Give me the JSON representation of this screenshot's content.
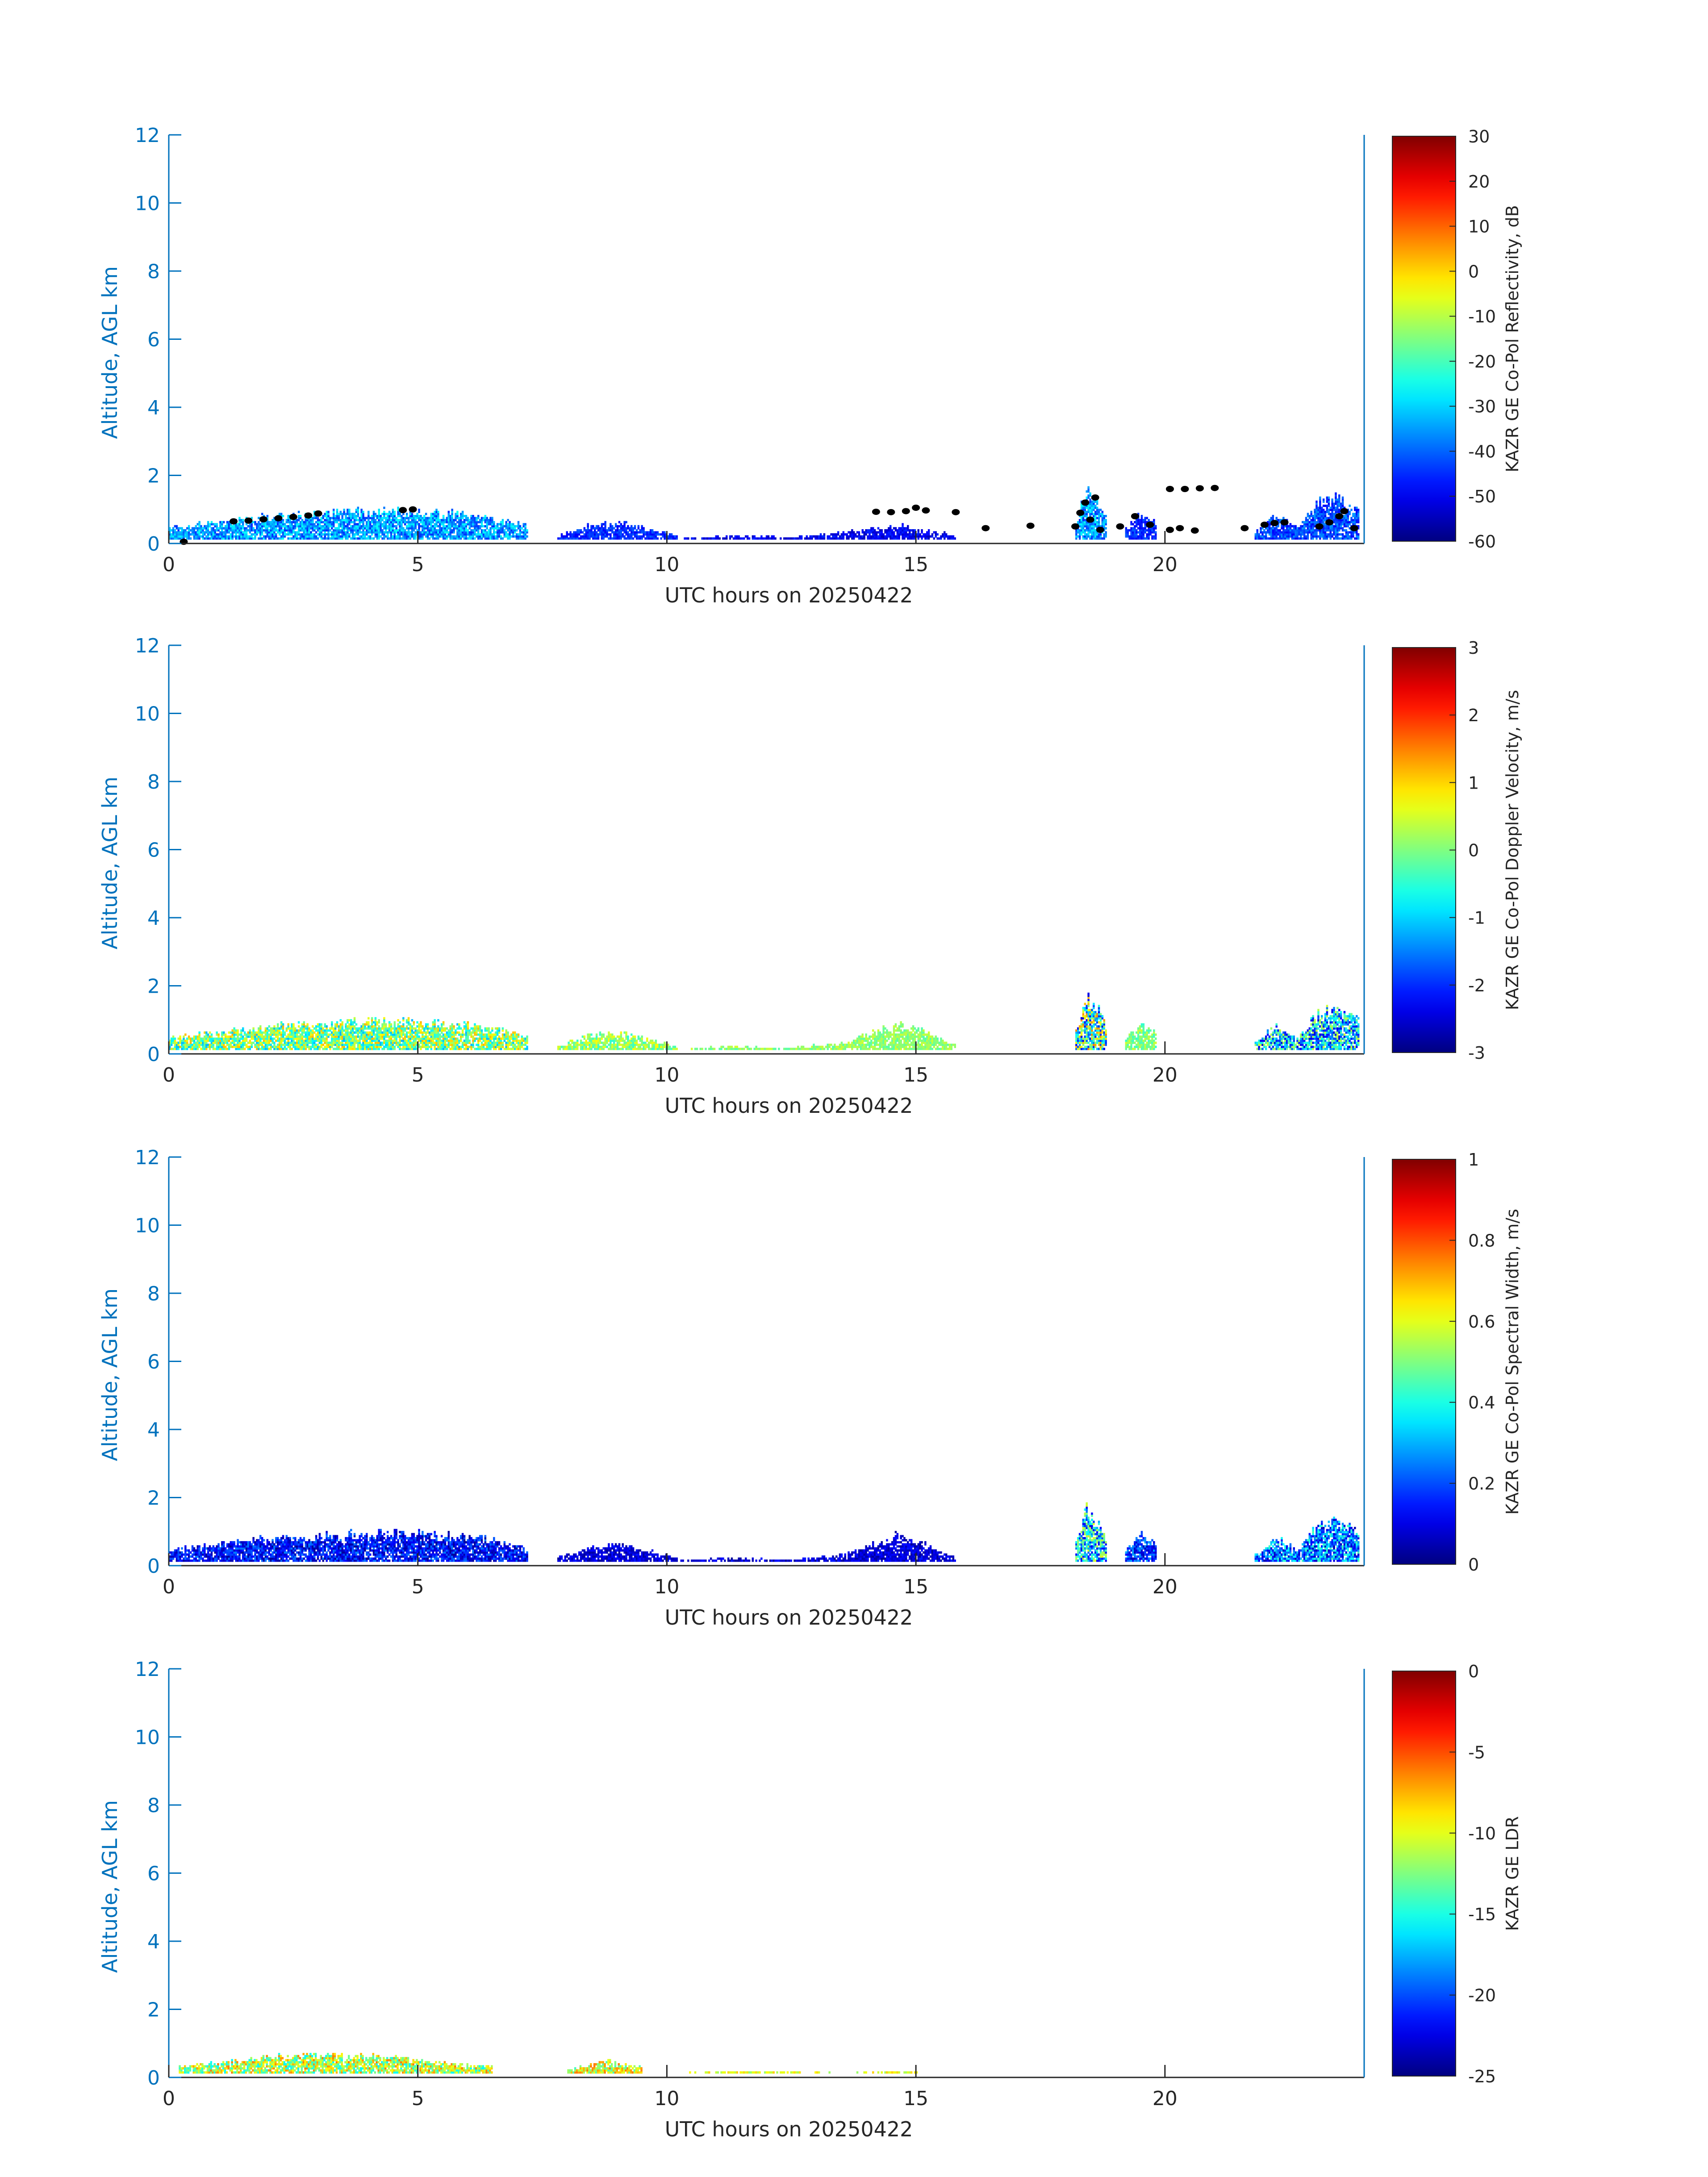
{
  "figure": {
    "colormap": "jet",
    "axis_color": "#0072bd",
    "text_color": "#262626",
    "marker_color": "#000000"
  },
  "chart_data": [
    {
      "type": "heatmap",
      "title": "",
      "xlabel": "UTC hours on 20250422",
      "ylabel": "Altitude, AGL km",
      "xlim": [
        0,
        24
      ],
      "ylim": [
        0,
        12
      ],
      "x_ticks": [
        0,
        5,
        10,
        15,
        20
      ],
      "y_ticks": [
        0,
        2,
        4,
        6,
        8,
        10,
        12
      ],
      "grid": false,
      "colorbar": {
        "label": "KAZR GE Co-Pol Reflectivity, dB",
        "min": -60,
        "max": 30,
        "ticks": [
          -60,
          -50,
          -40,
          -30,
          -20,
          -10,
          0,
          10,
          20,
          30
        ]
      },
      "echo_regions": [
        {
          "x": [
            0,
            7.2
          ],
          "top_km": [
            0.45,
            0.6,
            0.8,
            0.85,
            0.95,
            0.9,
            0.8,
            0.5
          ],
          "value_range": [
            -45,
            -25
          ]
        },
        {
          "x": [
            7.8,
            10.2
          ],
          "top_km": [
            0.2,
            0.5,
            0.6,
            0.4,
            0.2
          ],
          "value_range": [
            -50,
            -40
          ]
        },
        {
          "x": [
            10.2,
            15.8
          ],
          "top_km": [
            0.1,
            0.2,
            0.15,
            0.3,
            0.5,
            0.2
          ],
          "value_range": [
            -55,
            -45
          ]
        },
        {
          "x": [
            18.2,
            18.8
          ],
          "top_km": [
            0.6,
            1.6,
            1.4,
            0.8
          ],
          "value_range": [
            -45,
            -25
          ]
        },
        {
          "x": [
            19.2,
            19.8
          ],
          "top_km": [
            0.4,
            0.9,
            0.6
          ],
          "value_range": [
            -50,
            -40
          ]
        },
        {
          "x": [
            21.8,
            23.9
          ],
          "top_km": [
            0.3,
            0.8,
            0.4,
            1.2,
            1.3,
            0.9
          ],
          "value_range": [
            -50,
            -35
          ]
        }
      ],
      "cloud_base_markers": [
        [
          0.3,
          0.05
        ],
        [
          1.3,
          0.65
        ],
        [
          1.6,
          0.67
        ],
        [
          1.9,
          0.71
        ],
        [
          2.2,
          0.74
        ],
        [
          2.5,
          0.78
        ],
        [
          2.8,
          0.82
        ],
        [
          3.0,
          0.88
        ],
        [
          4.7,
          0.98
        ],
        [
          4.9,
          1.0
        ],
        [
          14.2,
          0.93
        ],
        [
          14.5,
          0.92
        ],
        [
          14.8,
          0.95
        ],
        [
          15.0,
          1.05
        ],
        [
          15.2,
          0.97
        ],
        [
          15.8,
          0.92
        ],
        [
          16.4,
          0.45
        ],
        [
          17.3,
          0.52
        ],
        [
          18.2,
          0.5
        ],
        [
          18.3,
          0.9
        ],
        [
          18.4,
          1.2
        ],
        [
          18.5,
          0.7
        ],
        [
          18.6,
          1.35
        ],
        [
          18.7,
          0.4
        ],
        [
          19.1,
          0.5
        ],
        [
          19.4,
          0.8
        ],
        [
          19.7,
          0.55
        ],
        [
          20.1,
          0.4
        ],
        [
          20.3,
          0.45
        ],
        [
          20.6,
          0.38
        ],
        [
          20.1,
          1.6
        ],
        [
          20.4,
          1.6
        ],
        [
          20.7,
          1.62
        ],
        [
          21.0,
          1.63
        ],
        [
          21.6,
          0.45
        ],
        [
          22.0,
          0.55
        ],
        [
          22.2,
          0.6
        ],
        [
          22.4,
          0.62
        ],
        [
          23.1,
          0.5
        ],
        [
          23.3,
          0.62
        ],
        [
          23.5,
          0.8
        ],
        [
          23.6,
          0.95
        ],
        [
          23.8,
          0.45
        ]
      ]
    },
    {
      "type": "heatmap",
      "title": "",
      "xlabel": "UTC hours on 20250422",
      "ylabel": "Altitude, AGL km",
      "xlim": [
        0,
        24
      ],
      "ylim": [
        0,
        12
      ],
      "x_ticks": [
        0,
        5,
        10,
        15,
        20
      ],
      "y_ticks": [
        0,
        2,
        4,
        6,
        8,
        10,
        12
      ],
      "grid": false,
      "colorbar": {
        "label": "KAZR GE Co-Pol Doppler Velocity, m/s",
        "min": -3,
        "max": 3,
        "ticks": [
          -3,
          -2,
          -1,
          0,
          1,
          2,
          3
        ]
      },
      "echo_regions": [
        {
          "x": [
            0,
            7.2
          ],
          "top_km": [
            0.45,
            0.6,
            0.8,
            0.85,
            0.95,
            0.9,
            0.8,
            0.5
          ],
          "value_range": [
            -1.2,
            1.2
          ]
        },
        {
          "x": [
            7.8,
            10.2
          ],
          "top_km": [
            0.2,
            0.5,
            0.6,
            0.4,
            0.2
          ],
          "value_range": [
            -0.5,
            0.8
          ]
        },
        {
          "x": [
            10.2,
            15.8
          ],
          "top_km": [
            0.1,
            0.2,
            0.15,
            0.3,
            0.9,
            0.2
          ],
          "value_range": [
            -0.3,
            0.5
          ]
        },
        {
          "x": [
            18.2,
            18.8
          ],
          "top_km": [
            0.6,
            1.6,
            1.4,
            0.8
          ],
          "value_range": [
            -2.5,
            1.5
          ]
        },
        {
          "x": [
            19.2,
            19.8
          ],
          "top_km": [
            0.4,
            0.9,
            0.6
          ],
          "value_range": [
            -0.5,
            0.5
          ]
        },
        {
          "x": [
            21.8,
            23.9
          ],
          "top_km": [
            0.3,
            0.8,
            0.4,
            1.2,
            1.3,
            0.9
          ],
          "value_range": [
            -2.5,
            0.5
          ]
        }
      ]
    },
    {
      "type": "heatmap",
      "title": "",
      "xlabel": "UTC hours on 20250422",
      "ylabel": "Altitude, AGL km",
      "xlim": [
        0,
        24
      ],
      "ylim": [
        0,
        12
      ],
      "x_ticks": [
        0,
        5,
        10,
        15,
        20
      ],
      "y_ticks": [
        0,
        2,
        4,
        6,
        8,
        10,
        12
      ],
      "grid": false,
      "colorbar": {
        "label": "KAZR GE Co-Pol Spectral Width, m/s",
        "min": 0,
        "max": 1,
        "ticks": [
          0,
          0.2,
          0.4,
          0.6,
          0.8,
          1
        ]
      },
      "echo_regions": [
        {
          "x": [
            0,
            7.2
          ],
          "top_km": [
            0.45,
            0.6,
            0.8,
            0.85,
            0.95,
            0.9,
            0.8,
            0.5
          ],
          "value_range": [
            0.02,
            0.25
          ]
        },
        {
          "x": [
            7.8,
            10.2
          ],
          "top_km": [
            0.2,
            0.5,
            0.6,
            0.4,
            0.2
          ],
          "value_range": [
            0.02,
            0.15
          ]
        },
        {
          "x": [
            10.2,
            15.8
          ],
          "top_km": [
            0.1,
            0.2,
            0.15,
            0.3,
            0.9,
            0.2
          ],
          "value_range": [
            0.02,
            0.15
          ]
        },
        {
          "x": [
            18.2,
            18.8
          ],
          "top_km": [
            0.6,
            1.6,
            1.4,
            0.8
          ],
          "value_range": [
            0.1,
            0.6
          ]
        },
        {
          "x": [
            19.2,
            19.8
          ],
          "top_km": [
            0.4,
            0.9,
            0.6
          ],
          "value_range": [
            0.05,
            0.3
          ]
        },
        {
          "x": [
            21.8,
            23.9
          ],
          "top_km": [
            0.3,
            0.8,
            0.4,
            1.2,
            1.3,
            0.9
          ],
          "value_range": [
            0.05,
            0.45
          ]
        }
      ]
    },
    {
      "type": "heatmap",
      "title": "",
      "xlabel": "UTC hours on 20250422",
      "ylabel": "Altitude, AGL km",
      "xlim": [
        0,
        24
      ],
      "ylim": [
        0,
        12
      ],
      "x_ticks": [
        0,
        5,
        10,
        15,
        20
      ],
      "y_ticks": [
        0,
        2,
        4,
        6,
        8,
        10,
        12
      ],
      "grid": false,
      "colorbar": {
        "label": "KAZR GE LDR",
        "min": -25,
        "max": 0,
        "ticks": [
          -25,
          -20,
          -15,
          -10,
          -5,
          0
        ]
      },
      "echo_regions": [
        {
          "x": [
            0.2,
            6.5
          ],
          "top_km": [
            0.3,
            0.45,
            0.6,
            0.65,
            0.55,
            0.4,
            0.3
          ],
          "value_range": [
            -16,
            -6
          ]
        },
        {
          "x": [
            8.0,
            9.5
          ],
          "top_km": [
            0.2,
            0.45,
            0.3
          ],
          "value_range": [
            -14,
            -6
          ]
        },
        {
          "x": [
            10.2,
            15.0
          ],
          "top_km": [
            0.1,
            0.15,
            0.1,
            0.15
          ],
          "value_range": [
            -12,
            -8
          ]
        }
      ]
    }
  ]
}
